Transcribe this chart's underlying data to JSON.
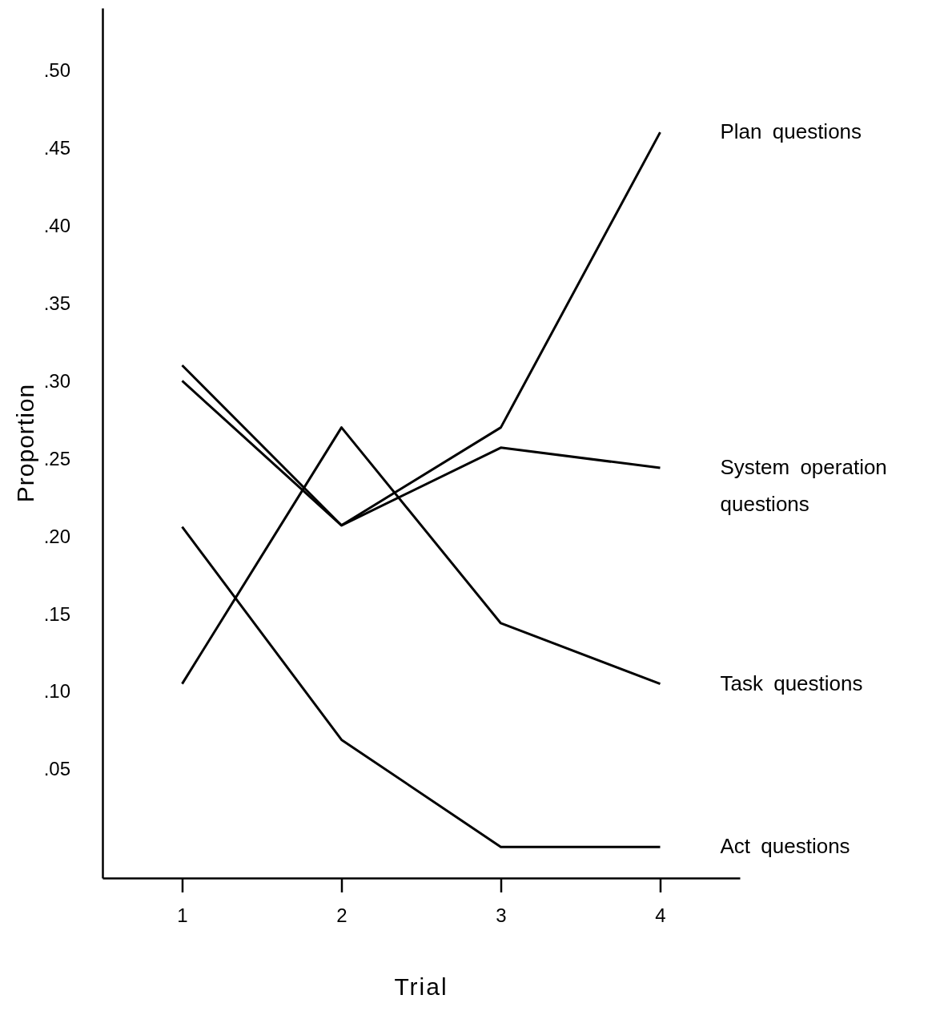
{
  "chart_data": {
    "type": "line",
    "xlabel": "Trial",
    "ylabel": "Proportion",
    "x": [
      1,
      2,
      3,
      4
    ],
    "xlim": [
      0.5,
      4.5
    ],
    "xticks": [
      1,
      2,
      3,
      4
    ],
    "ylim": [
      -0.02,
      0.54
    ],
    "yticks": [
      {
        "value": 0.05,
        "label": ".05"
      },
      {
        "value": 0.1,
        "label": ".10"
      },
      {
        "value": 0.15,
        "label": ".15"
      },
      {
        "value": 0.2,
        "label": ".20"
      },
      {
        "value": 0.25,
        "label": ".25"
      },
      {
        "value": 0.3,
        "label": ".30"
      },
      {
        "value": 0.35,
        "label": ".35"
      },
      {
        "value": 0.4,
        "label": ".40"
      },
      {
        "value": 0.45,
        "label": ".45"
      },
      {
        "value": 0.5,
        "label": ".50"
      }
    ],
    "series": [
      {
        "name": "Plan questions",
        "color": "#000000",
        "values": [
          0.31,
          0.207,
          0.27,
          0.46
        ]
      },
      {
        "name": "System operation questions",
        "color": "#000000",
        "values": [
          0.3,
          0.207,
          0.257,
          0.244
        ]
      },
      {
        "name": "Task questions",
        "color": "#000000",
        "values": [
          0.105,
          0.27,
          0.144,
          0.105
        ]
      },
      {
        "name": "Act questions",
        "color": "#000000",
        "values": [
          0.206,
          0.069,
          0.0,
          0.0
        ]
      }
    ],
    "grid": false,
    "legend": false,
    "marker": "none",
    "line_style": "solid"
  }
}
